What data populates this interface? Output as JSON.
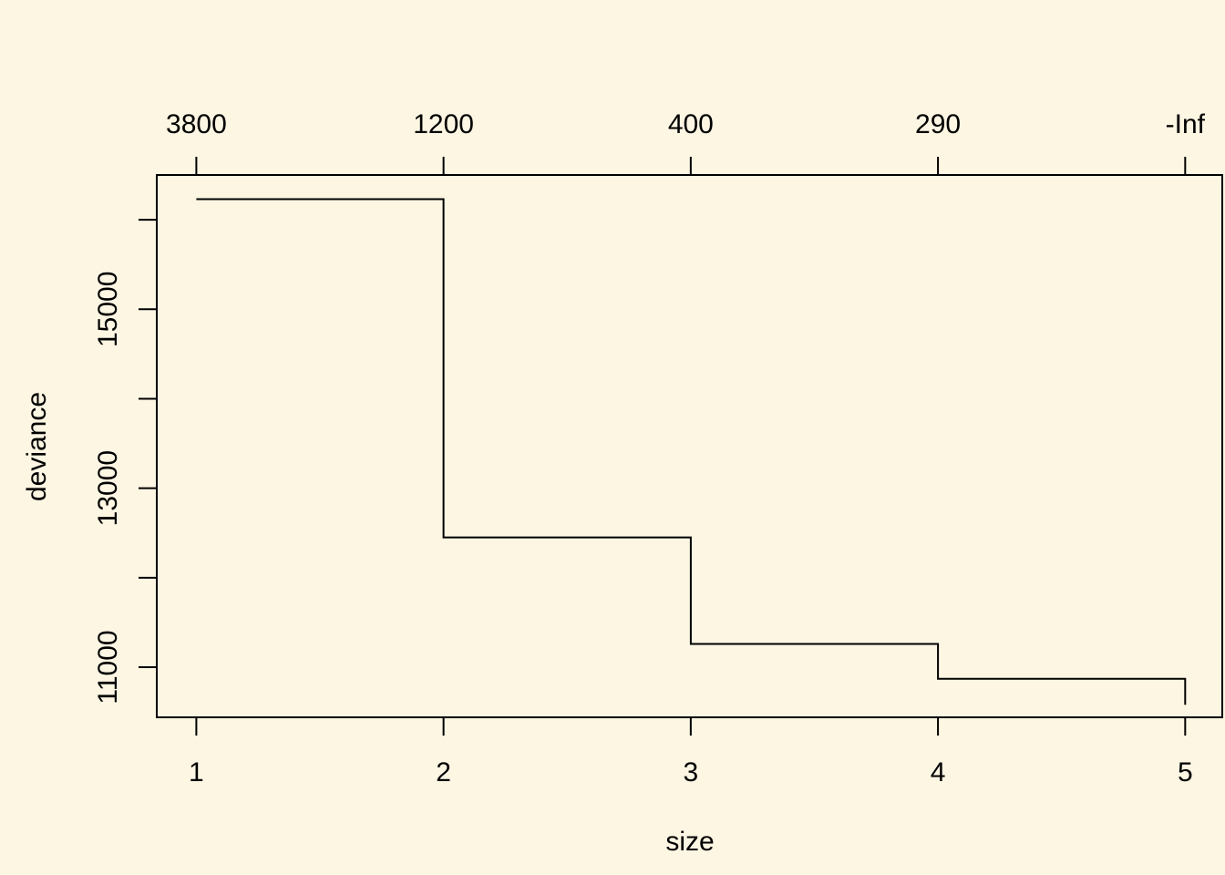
{
  "colors": {
    "background": "#FDF6E3",
    "line": "#000000"
  },
  "chart_data": {
    "type": "line",
    "step": "horizontal-then-vertical",
    "xlabel": "size",
    "ylabel": "deviance",
    "x": [
      1,
      2,
      3,
      4,
      5
    ],
    "y": [
      16230,
      12450,
      11260,
      10870,
      10580
    ],
    "xlim": [
      0.84,
      5.15
    ],
    "ylim": [
      10440,
      16500
    ],
    "x_ticks": [
      "1",
      "2",
      "3",
      "4",
      "5"
    ],
    "y_ticks": [
      11000,
      12000,
      13000,
      14000,
      15000,
      16000
    ],
    "y_tick_labels": [
      "11000",
      "",
      "13000",
      "",
      "15000",
      ""
    ],
    "top_axis": {
      "positions": [
        1,
        2,
        3,
        4,
        5
      ],
      "labels": [
        "3800",
        "1200",
        "400",
        "290",
        "-Inf"
      ]
    },
    "grid": false,
    "legend": "none"
  }
}
